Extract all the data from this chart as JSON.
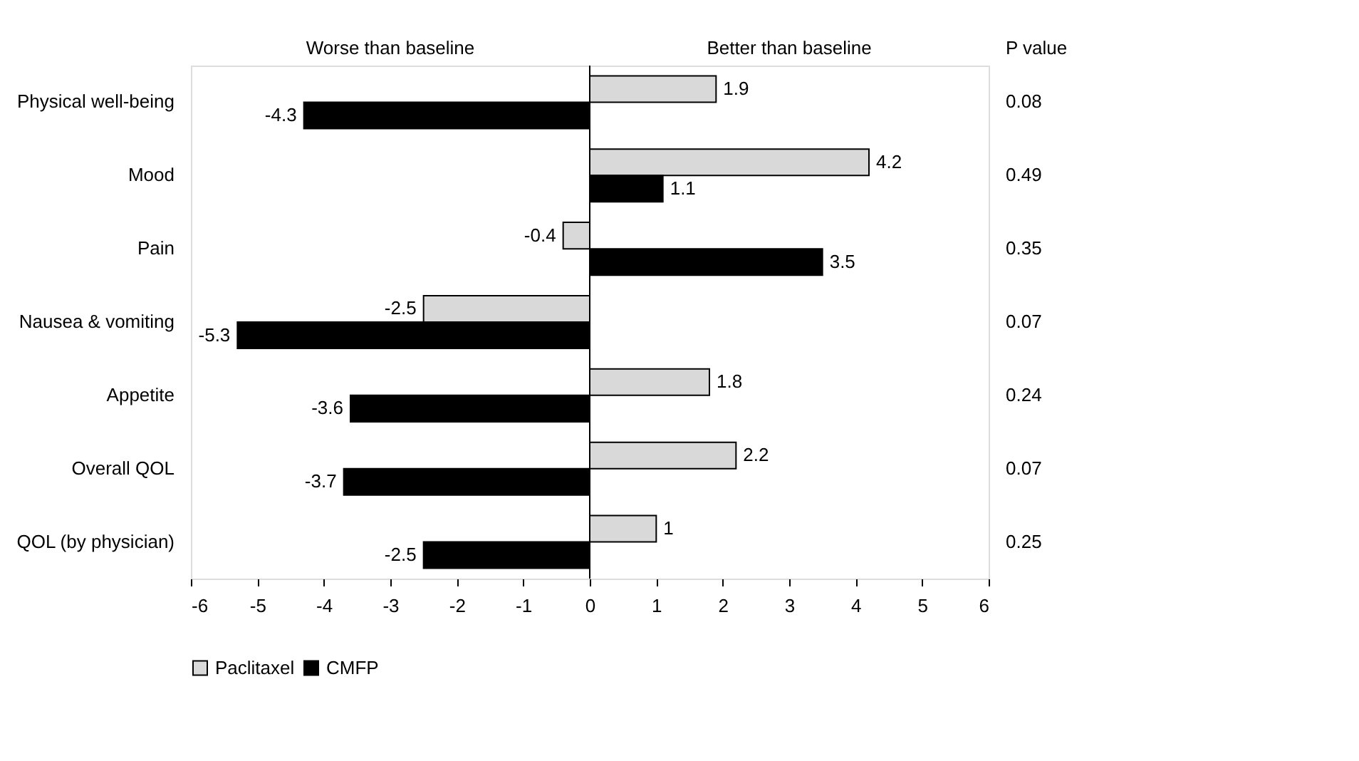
{
  "chart_data": {
    "type": "bar",
    "orientation": "horizontal",
    "categories": [
      "Physical well-being",
      "Mood",
      "Pain",
      "Nausea & vomiting",
      "Appetite",
      "Overall QOL",
      "QOL (by physician)"
    ],
    "series": [
      {
        "name": "Paclitaxel",
        "color": "#d9d9d9",
        "values": [
          1.9,
          4.2,
          -0.4,
          -2.5,
          1.8,
          2.2,
          1
        ]
      },
      {
        "name": "CMFP",
        "color": "#000000",
        "values": [
          -4.3,
          1.1,
          3.5,
          -5.3,
          -3.6,
          -3.7,
          -2.5
        ]
      }
    ],
    "xlim": [
      -6,
      6
    ],
    "xticks": [
      -6,
      -5,
      -4,
      -3,
      -2,
      -1,
      0,
      1,
      2,
      3,
      4,
      5,
      6
    ],
    "ref_lines": [
      {
        "axis": "x",
        "value": 0
      }
    ],
    "data_labels": true,
    "grid": false,
    "legend": "bottom",
    "annotations": [
      "Worse than baseline",
      "Better than baseline",
      "P value",
      "0.08",
      "0.49",
      "0.35",
      "0.07",
      "0.24",
      "0.07",
      "0.25"
    ]
  }
}
